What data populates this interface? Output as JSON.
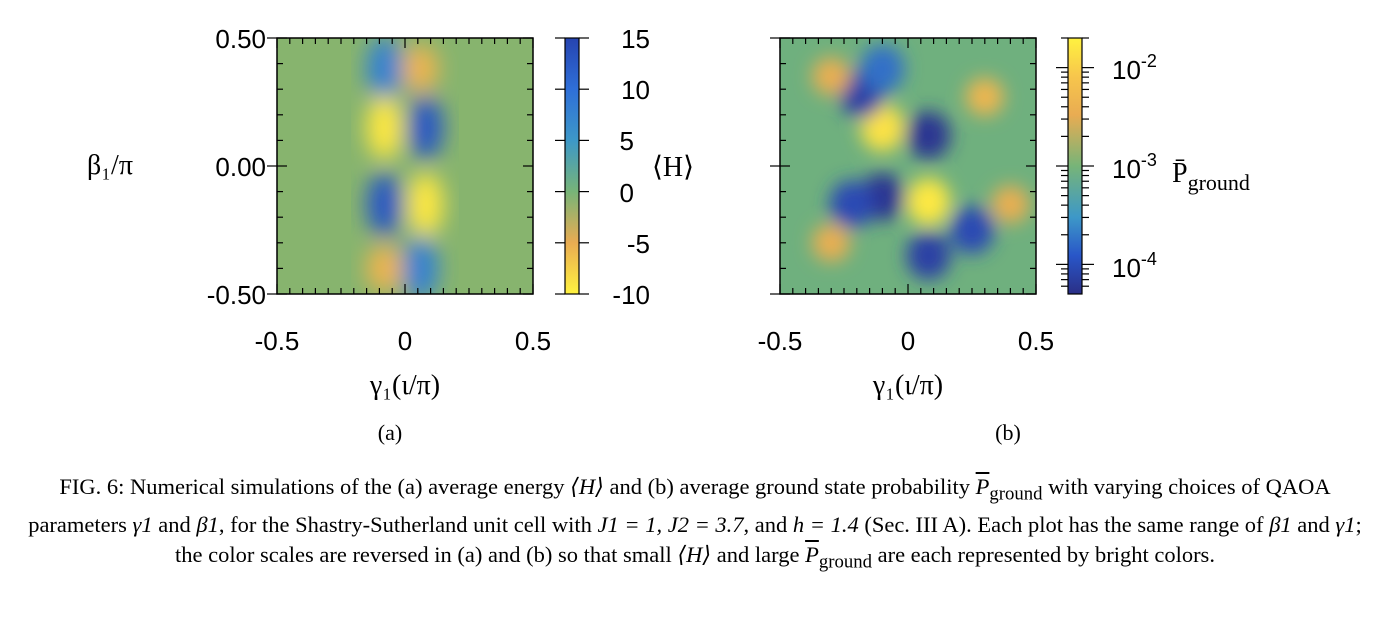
{
  "chart_data": [
    {
      "type": "heatmap",
      "panel_label": "(a)",
      "xlabel": "γ₁(ι/π)",
      "ylabel": "β₁/π",
      "xlim": [
        -0.5,
        0.5
      ],
      "ylim": [
        -0.5,
        0.5
      ],
      "x_tick_labels": [
        "-0.5",
        "0",
        "0.5"
      ],
      "y_tick_labels": [
        "0.50",
        "0.00",
        "-0.50"
      ],
      "colorbar": {
        "label": "⟨H⟩",
        "range": [
          -10,
          15
        ],
        "tick_labels": [
          "15",
          "10",
          "5",
          "0",
          "-5",
          "-10"
        ],
        "reversed": true
      },
      "colormap": [
        "#fff240",
        "#f7c64c",
        "#e9ac52",
        "#77b478",
        "#3d98c8",
        "#2f6fd8",
        "#2644b0"
      ],
      "features": [
        {
          "gamma": -0.08,
          "beta": 0.38,
          "value": 9
        },
        {
          "gamma": 0.06,
          "beta": 0.38,
          "value": -3
        },
        {
          "gamma": -0.08,
          "beta": 0.15,
          "value": -9
        },
        {
          "gamma": 0.08,
          "beta": 0.15,
          "value": 13
        },
        {
          "gamma": -0.08,
          "beta": -0.15,
          "value": 13
        },
        {
          "gamma": 0.08,
          "beta": -0.15,
          "value": -9
        },
        {
          "gamma": -0.08,
          "beta": -0.4,
          "value": -3
        },
        {
          "gamma": 0.06,
          "beta": -0.4,
          "value": 9
        }
      ]
    },
    {
      "type": "heatmap",
      "panel_label": "(b)",
      "xlabel": "γ₁(ι/π)",
      "xlim": [
        -0.5,
        0.5
      ],
      "ylim": [
        -0.5,
        0.5
      ],
      "x_tick_labels": [
        "-0.5",
        "0",
        "0.5"
      ],
      "colorbar": {
        "label": "P̄",
        "label_sub": "ground",
        "scale": "log",
        "range": [
          5e-05,
          0.02
        ],
        "tick_labels": [
          {
            "base": "10",
            "exp": "-2"
          },
          {
            "base": "10",
            "exp": "-3"
          },
          {
            "base": "10",
            "exp": "-4"
          }
        ]
      },
      "colormap": [
        "#2a2f86",
        "#2956c8",
        "#3d98c8",
        "#77b478",
        "#e9ac52",
        "#f7c64c",
        "#fff240"
      ],
      "features": [
        {
          "gamma": -0.1,
          "beta": 0.15,
          "value": 0.014
        },
        {
          "gamma": 0.08,
          "beta": -0.14,
          "value": 0.016
        },
        {
          "gamma": 0.08,
          "beta": 0.12,
          "value": 6e-05
        },
        {
          "gamma": -0.1,
          "beta": -0.12,
          "value": 6e-05
        },
        {
          "gamma": -0.18,
          "beta": 0.28,
          "value": 8e-05
        },
        {
          "gamma": 0.08,
          "beta": -0.35,
          "value": 8e-05
        },
        {
          "gamma": 0.25,
          "beta": -0.25,
          "value": 0.0001
        },
        {
          "gamma": -0.22,
          "beta": -0.15,
          "value": 0.0001
        },
        {
          "gamma": -0.1,
          "beta": 0.38,
          "value": 0.0002
        },
        {
          "gamma": 0.3,
          "beta": 0.27,
          "value": 0.004
        },
        {
          "gamma": -0.3,
          "beta": 0.35,
          "value": 0.003
        },
        {
          "gamma": -0.3,
          "beta": -0.3,
          "value": 0.003
        },
        {
          "gamma": 0.4,
          "beta": -0.15,
          "value": 0.003
        }
      ]
    }
  ],
  "caption": {
    "fig": "FIG. 6:",
    "segments": [
      "Numerical simulations of the (a) average energy",
      "⟨H⟩",
      "and (b) average ground state probability",
      "P",
      "ground",
      "with",
      "varying choices of QAOA parameters",
      "γ1",
      "and",
      "β1",
      ", for the Shastry-Sutherland unit cell with",
      "J1 = 1, J2 = 3.7",
      ", and",
      "h = 1.4",
      "(Sec. III A). Each plot has the same range of",
      "β1",
      "and",
      "γ1",
      "; the color scales are reversed in (a) and (b) so that",
      "small",
      "⟨H⟩",
      "and large",
      "P",
      "ground",
      "are each represented by bright colors."
    ]
  }
}
